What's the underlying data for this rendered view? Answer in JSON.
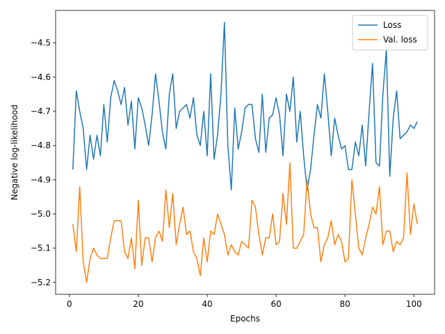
{
  "chart_data": {
    "type": "line",
    "title": "",
    "xlabel": "Epochs",
    "ylabel": "Negative log-likelihood",
    "xlim": [
      -4,
      106
    ],
    "ylim": [
      -5.235,
      -4.405
    ],
    "xticks": [
      0,
      20,
      40,
      60,
      80,
      100
    ],
    "yticks": [
      -5.2,
      -5.1,
      -5.0,
      -4.9,
      -4.8,
      -4.7,
      -4.6,
      -4.5
    ],
    "grid": false,
    "legend": "top-right",
    "x": [
      1,
      2,
      3,
      4,
      5,
      6,
      7,
      8,
      9,
      10,
      11,
      12,
      13,
      14,
      15,
      16,
      17,
      18,
      19,
      20,
      21,
      22,
      23,
      24,
      25,
      26,
      27,
      28,
      29,
      30,
      31,
      32,
      33,
      34,
      35,
      36,
      37,
      38,
      39,
      40,
      41,
      42,
      43,
      44,
      45,
      46,
      47,
      48,
      49,
      50,
      51,
      52,
      53,
      54,
      55,
      56,
      57,
      58,
      59,
      60,
      61,
      62,
      63,
      64,
      65,
      66,
      67,
      68,
      69,
      70,
      71,
      72,
      73,
      74,
      75,
      76,
      77,
      78,
      79,
      80,
      81,
      82,
      83,
      84,
      85,
      86,
      87,
      88,
      89,
      90,
      91,
      92,
      93,
      94,
      95,
      96,
      97,
      98,
      99,
      100,
      101
    ],
    "series": [
      {
        "name": "Loss",
        "color": "#1f77b4",
        "values": [
          -4.87,
          -4.64,
          -4.7,
          -4.75,
          -4.87,
          -4.77,
          -4.84,
          -4.77,
          -4.83,
          -4.68,
          -4.79,
          -4.66,
          -4.61,
          -4.64,
          -4.68,
          -4.63,
          -4.74,
          -4.67,
          -4.81,
          -4.66,
          -4.69,
          -4.74,
          -4.8,
          -4.71,
          -4.59,
          -4.67,
          -4.76,
          -4.81,
          -4.65,
          -4.59,
          -4.75,
          -4.7,
          -4.69,
          -4.68,
          -4.72,
          -4.66,
          -4.77,
          -4.8,
          -4.7,
          -4.83,
          -4.59,
          -4.84,
          -4.77,
          -4.65,
          -4.44,
          -4.8,
          -4.93,
          -4.69,
          -4.81,
          -4.76,
          -4.69,
          -4.68,
          -4.68,
          -4.78,
          -4.82,
          -4.65,
          -4.82,
          -4.72,
          -4.71,
          -4.66,
          -4.71,
          -4.83,
          -4.65,
          -4.7,
          -4.6,
          -4.79,
          -4.7,
          -4.83,
          -4.93,
          -4.87,
          -4.77,
          -4.68,
          -4.72,
          -4.59,
          -4.7,
          -4.83,
          -4.72,
          -4.77,
          -4.81,
          -4.8,
          -4.87,
          -4.87,
          -4.79,
          -4.83,
          -4.74,
          -4.86,
          -4.7,
          -4.56,
          -4.85,
          -4.86,
          -4.65,
          -4.52,
          -4.89,
          -4.72,
          -4.64,
          -4.78,
          -4.77,
          -4.76,
          -4.74,
          -4.75,
          -4.73
        ]
      },
      {
        "name": "Val. loss",
        "color": "#ff7f0e",
        "values": [
          -5.03,
          -5.11,
          -4.92,
          -5.14,
          -5.2,
          -5.13,
          -5.1,
          -5.12,
          -5.13,
          -5.13,
          -5.13,
          -5.07,
          -5.02,
          -5.02,
          -5.02,
          -5.11,
          -5.13,
          -5.07,
          -5.16,
          -4.96,
          -5.15,
          -5.07,
          -5.07,
          -5.14,
          -5.07,
          -5.05,
          -5.08,
          -4.93,
          -5.04,
          -4.94,
          -5.09,
          -5.03,
          -4.98,
          -5.06,
          -5.05,
          -5.11,
          -5.13,
          -5.18,
          -5.07,
          -5.14,
          -5.05,
          -5.06,
          -5.0,
          -5.03,
          -5.06,
          -5.12,
          -5.09,
          -5.11,
          -5.12,
          -5.08,
          -5.09,
          -5.1,
          -4.96,
          -4.98,
          -5.06,
          -5.12,
          -5.07,
          -5.07,
          -5.0,
          -5.09,
          -5.08,
          -4.94,
          -5.03,
          -4.85,
          -5.1,
          -5.1,
          -5.08,
          -5.06,
          -4.9,
          -5.0,
          -5.04,
          -5.04,
          -5.14,
          -5.09,
          -5.07,
          -5.02,
          -5.09,
          -5.06,
          -5.08,
          -5.14,
          -5.13,
          -4.9,
          -5.0,
          -5.1,
          -5.12,
          -5.07,
          -5.03,
          -4.98,
          -5.0,
          -4.92,
          -5.09,
          -5.05,
          -5.05,
          -5.11,
          -5.08,
          -5.09,
          -5.07,
          -4.88,
          -5.06,
          -4.97,
          -5.03
        ]
      }
    ]
  }
}
